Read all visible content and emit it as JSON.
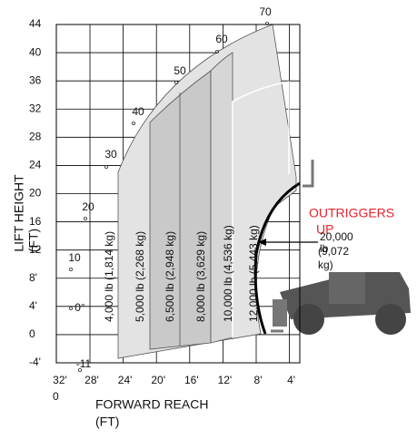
{
  "y_axis": {
    "title": [
      "LIFT HEIGHT",
      "(FT)"
    ],
    "ticks": [
      "44",
      "40",
      "36",
      "32",
      "28",
      "24",
      "20",
      "16",
      "12",
      "8'",
      "4'",
      "0",
      "-4'"
    ]
  },
  "x_axis": {
    "title": [
      "FORWARD REACH",
      "(FT)"
    ],
    "ticks": [
      "32'",
      "28'",
      "24'",
      "20'",
      "16'",
      "12'",
      "8'",
      "4'"
    ],
    "sub_label": "0"
  },
  "boom_angles": [
    "70",
    "60",
    "50",
    "40",
    "30",
    "20",
    "10",
    "0°",
    "-11"
  ],
  "load_zones": [
    "4,000 lb (1,814 kg)",
    "5,000 lb (2,268 kg)",
    "6,500 lb (2,948 kg)",
    "8,000 lb (3,629 kg)",
    "10,000 lb (4,536 kg)",
    "12,000 lb (5,443 kg)"
  ],
  "annotation": {
    "outriggers": [
      "OUTRIGGERS",
      "UP"
    ],
    "capacity": [
      "20,000",
      "lb",
      "(9,072",
      "kg)"
    ]
  }
}
